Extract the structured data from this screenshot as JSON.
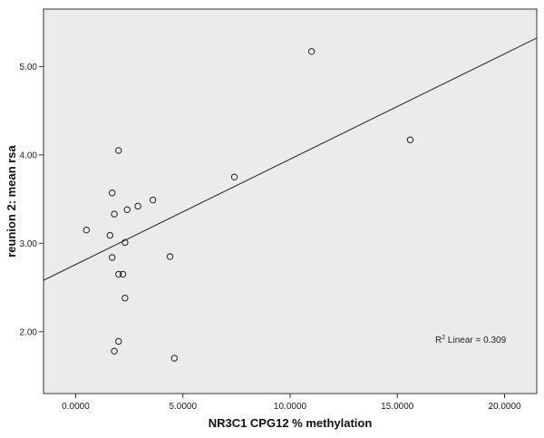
{
  "chart_data": {
    "type": "scatter",
    "xlabel": "NR3C1 CPG12 % methylation",
    "ylabel": "reunion 2: mean rsa",
    "xlim": [
      -1.5,
      21.5
    ],
    "ylim": [
      1.3,
      5.65
    ],
    "x_ticks": [
      0,
      5,
      10,
      15,
      20
    ],
    "x_tick_labels": [
      "0.0000",
      "5.0000",
      "10.0000",
      "15.0000",
      "20.0000"
    ],
    "y_ticks": [
      2,
      3,
      4,
      5
    ],
    "y_tick_labels": [
      "2.00",
      "3.00",
      "4.00",
      "5.00"
    ],
    "points": [
      {
        "x": 11.0,
        "y": 5.17
      },
      {
        "x": 15.6,
        "y": 4.17
      },
      {
        "x": 7.4,
        "y": 3.75
      },
      {
        "x": 2.0,
        "y": 4.05
      },
      {
        "x": 1.7,
        "y": 3.57
      },
      {
        "x": 3.6,
        "y": 3.49
      },
      {
        "x": 2.9,
        "y": 3.42
      },
      {
        "x": 2.4,
        "y": 3.38
      },
      {
        "x": 1.8,
        "y": 3.33
      },
      {
        "x": 0.5,
        "y": 3.15
      },
      {
        "x": 1.6,
        "y": 3.09
      },
      {
        "x": 2.3,
        "y": 3.01
      },
      {
        "x": 4.4,
        "y": 2.85
      },
      {
        "x": 1.7,
        "y": 2.84
      },
      {
        "x": 2.0,
        "y": 2.65
      },
      {
        "x": 2.2,
        "y": 2.65
      },
      {
        "x": 2.3,
        "y": 2.38
      },
      {
        "x": 2.0,
        "y": 1.89
      },
      {
        "x": 1.8,
        "y": 1.78
      },
      {
        "x": 4.6,
        "y": 1.7
      }
    ],
    "fit_line": {
      "intercept": 2.76,
      "slope": 0.1192
    },
    "annotation": {
      "prefix": "R",
      "superscript": "2",
      "suffix": " Linear = 0.309"
    },
    "plot_background": "#ebebeb",
    "page_background": "#ffffff",
    "grid": false
  }
}
